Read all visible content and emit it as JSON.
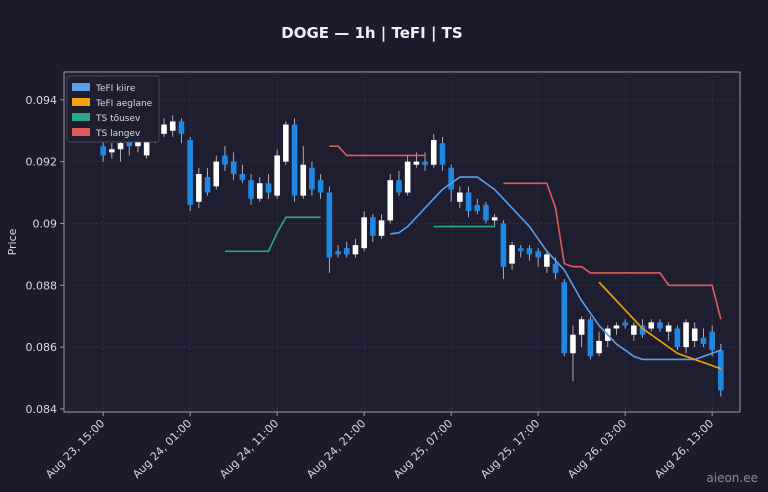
{
  "chart_data": {
    "type": "candlestick",
    "title": "DOGE — 1h  |  TeFI  |  TS",
    "y_label": "Price",
    "watermark": "aieon.ee",
    "x": [
      "Aug 23, 15:00",
      "Aug 23, 16:00",
      "Aug 23, 17:00",
      "Aug 23, 18:00",
      "Aug 23, 19:00",
      "Aug 23, 20:00",
      "Aug 23, 21:00",
      "Aug 23, 22:00",
      "Aug 23, 23:00",
      "Aug 24, 00:00",
      "Aug 24, 01:00",
      "Aug 24, 02:00",
      "Aug 24, 03:00",
      "Aug 24, 04:00",
      "Aug 24, 05:00",
      "Aug 24, 06:00",
      "Aug 24, 07:00",
      "Aug 24, 08:00",
      "Aug 24, 09:00",
      "Aug 24, 10:00",
      "Aug 24, 11:00",
      "Aug 24, 12:00",
      "Aug 24, 13:00",
      "Aug 24, 14:00",
      "Aug 24, 15:00",
      "Aug 24, 16:00",
      "Aug 24, 17:00",
      "Aug 24, 18:00",
      "Aug 24, 19:00",
      "Aug 24, 20:00",
      "Aug 24, 21:00",
      "Aug 24, 22:00",
      "Aug 24, 23:00",
      "Aug 25, 00:00",
      "Aug 25, 01:00",
      "Aug 25, 02:00",
      "Aug 25, 03:00",
      "Aug 25, 04:00",
      "Aug 25, 05:00",
      "Aug 25, 06:00",
      "Aug 25, 07:00",
      "Aug 25, 08:00",
      "Aug 25, 09:00",
      "Aug 25, 10:00",
      "Aug 25, 11:00",
      "Aug 25, 12:00",
      "Aug 25, 13:00",
      "Aug 25, 14:00",
      "Aug 25, 15:00",
      "Aug 25, 16:00",
      "Aug 25, 17:00",
      "Aug 25, 18:00",
      "Aug 25, 19:00",
      "Aug 25, 20:00",
      "Aug 25, 21:00",
      "Aug 25, 22:00",
      "Aug 25, 23:00",
      "Aug 26, 00:00",
      "Aug 26, 01:00",
      "Aug 26, 02:00",
      "Aug 26, 03:00",
      "Aug 26, 04:00",
      "Aug 26, 05:00",
      "Aug 26, 06:00",
      "Aug 26, 07:00",
      "Aug 26, 08:00",
      "Aug 26, 09:00",
      "Aug 26, 10:00",
      "Aug 26, 11:00",
      "Aug 26, 12:00",
      "Aug 26, 13:00",
      "Aug 26, 14:00"
    ],
    "open": [
      0.0925,
      0.0923,
      0.0924,
      0.0927,
      0.0925,
      0.0922,
      0.0928,
      0.0929,
      0.093,
      0.0933,
      0.0927,
      0.0907,
      0.0915,
      0.0912,
      0.0922,
      0.092,
      0.0916,
      0.0914,
      0.0908,
      0.0913,
      0.0909,
      0.092,
      0.0932,
      0.0909,
      0.0918,
      0.0914,
      0.091,
      0.0891,
      0.0892,
      0.089,
      0.0892,
      0.0902,
      0.0896,
      0.0901,
      0.0914,
      0.091,
      0.0919,
      0.092,
      0.0919,
      0.0926,
      0.0918,
      0.0907,
      0.091,
      0.0906,
      0.0906,
      0.0901,
      0.09,
      0.0887,
      0.0892,
      0.0892,
      0.0891,
      0.0886,
      0.0887,
      0.0881,
      0.0858,
      0.0864,
      0.0869,
      0.0858,
      0.0862,
      0.0866,
      0.0868,
      0.0864,
      0.0867,
      0.0866,
      0.0868,
      0.0865,
      0.0866,
      0.086,
      0.0862,
      0.0863,
      0.0865,
      0.0859
    ],
    "high": [
      0.0932,
      0.0926,
      0.093,
      0.0929,
      0.093,
      0.0928,
      0.0931,
      0.0934,
      0.0935,
      0.0934,
      0.0928,
      0.0918,
      0.0918,
      0.0922,
      0.0925,
      0.0923,
      0.0919,
      0.0916,
      0.0915,
      0.0916,
      0.0924,
      0.0933,
      0.0934,
      0.0925,
      0.092,
      0.0916,
      0.0912,
      0.0893,
      0.0894,
      0.0895,
      0.0904,
      0.0903,
      0.0903,
      0.0916,
      0.0917,
      0.0922,
      0.0923,
      0.0923,
      0.0929,
      0.0928,
      0.0919,
      0.0912,
      0.0912,
      0.0908,
      0.0907,
      0.0903,
      0.0901,
      0.0894,
      0.0893,
      0.0893,
      0.0892,
      0.0891,
      0.0889,
      0.0882,
      0.0867,
      0.087,
      0.087,
      0.0865,
      0.0867,
      0.0868,
      0.0869,
      0.0868,
      0.0869,
      0.0869,
      0.0869,
      0.0868,
      0.0867,
      0.0869,
      0.0868,
      0.0866,
      0.0867,
      0.0861
    ],
    "low": [
      0.092,
      0.0921,
      0.092,
      0.0922,
      0.0923,
      0.0921,
      0.0926,
      0.0928,
      0.0928,
      0.0926,
      0.0904,
      0.0905,
      0.0909,
      0.0911,
      0.0917,
      0.0914,
      0.0913,
      0.0906,
      0.0907,
      0.0908,
      0.0908,
      0.0919,
      0.0907,
      0.0908,
      0.0909,
      0.0908,
      0.0884,
      0.0889,
      0.0889,
      0.0889,
      0.0891,
      0.0894,
      0.0895,
      0.09,
      0.0909,
      0.0909,
      0.0918,
      0.0917,
      0.0918,
      0.0917,
      0.0907,
      0.0905,
      0.0902,
      0.0903,
      0.09,
      0.0899,
      0.0882,
      0.0885,
      0.0889,
      0.0888,
      0.0886,
      0.0884,
      0.0882,
      0.0857,
      0.0849,
      0.086,
      0.0856,
      0.0857,
      0.086,
      0.0864,
      0.0866,
      0.0862,
      0.0863,
      0.0865,
      0.0865,
      0.0862,
      0.0859,
      0.0858,
      0.086,
      0.086,
      0.0857,
      0.0844
    ],
    "close": [
      0.0922,
      0.0924,
      0.0926,
      0.0925,
      0.0928,
      0.0927,
      0.093,
      0.0932,
      0.0933,
      0.0929,
      0.0906,
      0.0916,
      0.091,
      0.092,
      0.0919,
      0.0916,
      0.0914,
      0.0908,
      0.0913,
      0.091,
      0.0922,
      0.0932,
      0.0909,
      0.0919,
      0.0911,
      0.091,
      0.0889,
      0.089,
      0.089,
      0.0893,
      0.0902,
      0.0896,
      0.0901,
      0.0914,
      0.091,
      0.092,
      0.092,
      0.0919,
      0.0927,
      0.0919,
      0.0911,
      0.091,
      0.0904,
      0.0904,
      0.0901,
      0.0902,
      0.0886,
      0.0893,
      0.0891,
      0.089,
      0.0889,
      0.089,
      0.0884,
      0.0858,
      0.0864,
      0.0869,
      0.0857,
      0.0862,
      0.0866,
      0.0867,
      0.0867,
      0.0867,
      0.0864,
      0.0868,
      0.0866,
      0.0867,
      0.086,
      0.0868,
      0.0866,
      0.0861,
      0.0859,
      0.0846
    ],
    "up_color": "#ffffff",
    "down_color": "#1e88e5",
    "series": [
      {
        "name": "TeFI kiire",
        "color": "#5aa0e8",
        "values": [
          null,
          null,
          null,
          null,
          null,
          null,
          null,
          null,
          null,
          null,
          null,
          null,
          null,
          null,
          null,
          null,
          null,
          null,
          null,
          null,
          null,
          null,
          null,
          null,
          null,
          null,
          null,
          null,
          null,
          null,
          null,
          null,
          null,
          0.08966,
          0.0897,
          0.0899,
          0.0902,
          0.0905,
          0.0908,
          0.0911,
          0.0913,
          0.0915,
          0.0915,
          0.0915,
          0.0913,
          0.0911,
          0.0908,
          0.0905,
          0.0902,
          0.0899,
          0.0895,
          0.0891,
          0.0888,
          0.0885,
          0.088,
          0.0875,
          0.0871,
          0.0867,
          0.0864,
          0.0861,
          0.0859,
          0.0857,
          0.0856,
          0.0856,
          0.0856,
          0.0856,
          0.0856,
          0.0856,
          0.0856,
          0.0857,
          0.0858,
          0.0859
        ]
      },
      {
        "name": "TeFI aeglane",
        "color": "#f0a30a",
        "values": [
          null,
          null,
          null,
          null,
          null,
          null,
          null,
          null,
          null,
          null,
          null,
          null,
          null,
          null,
          null,
          null,
          null,
          null,
          null,
          null,
          null,
          null,
          null,
          null,
          null,
          null,
          null,
          null,
          null,
          null,
          null,
          null,
          null,
          null,
          null,
          null,
          null,
          null,
          null,
          null,
          null,
          null,
          null,
          null,
          null,
          null,
          null,
          null,
          null,
          null,
          null,
          null,
          null,
          null,
          null,
          null,
          null,
          0.0881,
          0.0878,
          0.0875,
          0.0872,
          0.0869,
          0.0866,
          0.0864,
          0.0862,
          0.086,
          0.0858,
          0.0857,
          0.0856,
          0.0855,
          0.0854,
          0.0853
        ]
      },
      {
        "name": "TS tõusev",
        "color": "#2aa889",
        "values": [
          null,
          null,
          null,
          null,
          null,
          null,
          null,
          null,
          null,
          null,
          null,
          null,
          null,
          null,
          0.0891,
          0.0891,
          0.0891,
          0.0891,
          0.0891,
          0.0891,
          0.0897,
          0.0902,
          0.0902,
          0.0902,
          0.0902,
          0.0902,
          null,
          null,
          null,
          null,
          null,
          null,
          null,
          null,
          null,
          null,
          null,
          null,
          0.0899,
          0.0899,
          0.0899,
          0.0899,
          0.0899,
          0.0899,
          0.0899,
          0.0899,
          null,
          null,
          null,
          null,
          null,
          null,
          null,
          null,
          null,
          null,
          null,
          null,
          null,
          null,
          null,
          null,
          null,
          null,
          null,
          null,
          null,
          null,
          null,
          null,
          null,
          null
        ]
      },
      {
        "name": "TS langev",
        "color": "#e05a5a",
        "values": [
          null,
          null,
          null,
          null,
          null,
          null,
          null,
          null,
          null,
          null,
          null,
          null,
          null,
          null,
          null,
          null,
          null,
          null,
          null,
          null,
          null,
          null,
          null,
          null,
          null,
          null,
          0.0925,
          0.0925,
          0.0922,
          0.0922,
          0.0922,
          0.0922,
          0.0922,
          0.0922,
          0.0922,
          0.0922,
          0.0922,
          0.0922,
          null,
          null,
          null,
          null,
          null,
          null,
          null,
          null,
          0.0913,
          0.0913,
          0.0913,
          0.0913,
          0.0913,
          0.0913,
          0.0905,
          0.0887,
          0.0886,
          0.0886,
          0.0884,
          0.0884,
          0.0884,
          0.0884,
          0.0884,
          0.0884,
          0.0884,
          0.0884,
          0.0884,
          0.088,
          0.088,
          0.088,
          0.088,
          0.088,
          0.088,
          0.0869
        ]
      }
    ],
    "ylim": [
      0.0839,
      0.0949
    ],
    "yticks": [
      0.084,
      0.086,
      0.088,
      0.09,
      0.092,
      0.094
    ],
    "xticks": [
      "Aug 23, 15:00",
      "Aug 24, 01:00",
      "Aug 24, 11:00",
      "Aug 24, 21:00",
      "Aug 25, 07:00",
      "Aug 25, 17:00",
      "Aug 26, 03:00",
      "Aug 26, 13:00"
    ],
    "grid": true,
    "legend": "upper left"
  }
}
